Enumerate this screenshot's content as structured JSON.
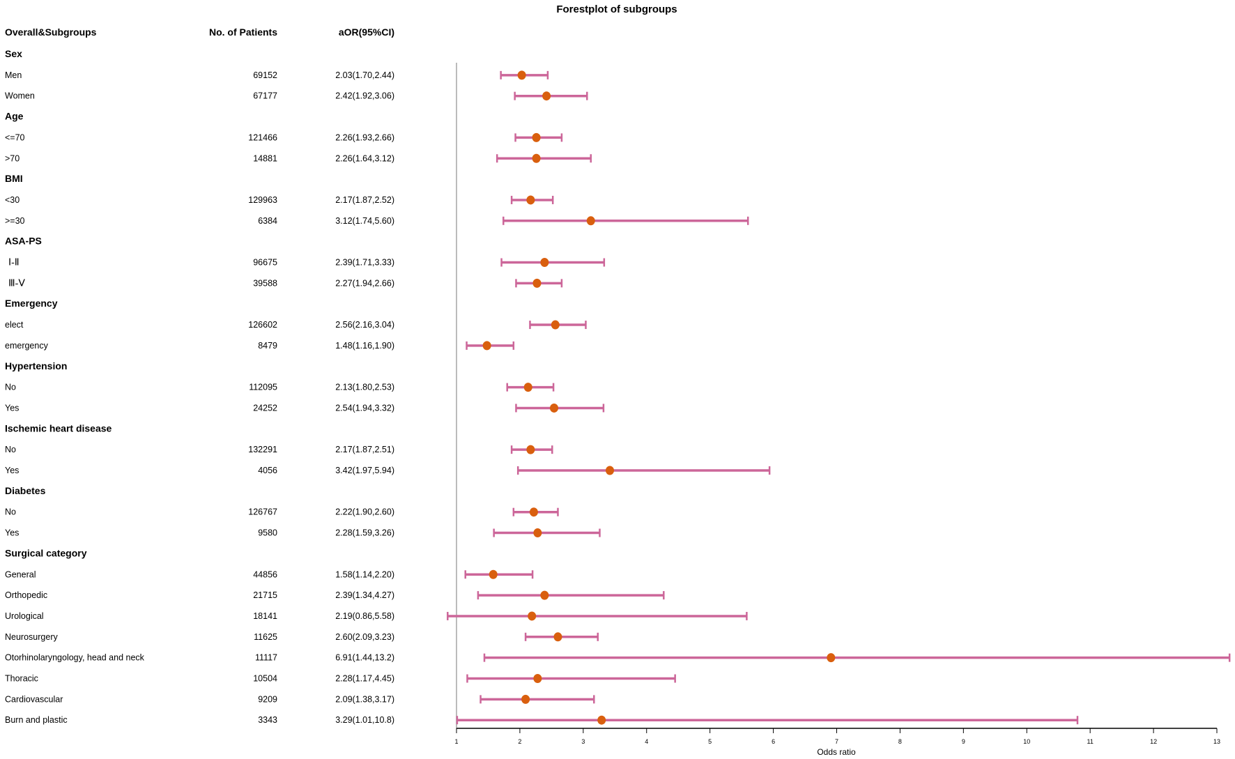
{
  "chart_data": {
    "type": "forest",
    "title": "Forestplot of subgroups",
    "columns": [
      "Overall&Subgroups",
      "No. of Patients",
      "aOR(95%CI)"
    ],
    "xlabel": "Odds ratio",
    "xlim": [
      1,
      13
    ],
    "xticks": [
      "1",
      "2",
      "3",
      "4",
      "5",
      "6",
      "7",
      "8",
      "9",
      "10",
      "11",
      "12",
      "13"
    ],
    "reference_line": 1,
    "colors": {
      "ci": "#cc6699",
      "point": "#d95f0e",
      "ref": "#bbbbbb",
      "axis": "#000000"
    },
    "rows": [
      {
        "kind": "group",
        "label": "Sex"
      },
      {
        "kind": "item",
        "label": "Men",
        "n": "69152",
        "ci_text": "2.03(1.70,2.44)",
        "or": 2.03,
        "lo": 1.7,
        "hi": 2.44
      },
      {
        "kind": "item",
        "label": "Women",
        "n": "67177",
        "ci_text": "2.42(1.92,3.06)",
        "or": 2.42,
        "lo": 1.92,
        "hi": 3.06
      },
      {
        "kind": "group",
        "label": "Age"
      },
      {
        "kind": "item",
        "label": "<=70",
        "n": "121466",
        "ci_text": "2.26(1.93,2.66)",
        "or": 2.26,
        "lo": 1.93,
        "hi": 2.66
      },
      {
        "kind": "item",
        "label": ">70",
        "n": "14881",
        "ci_text": "2.26(1.64,3.12)",
        "or": 2.26,
        "lo": 1.64,
        "hi": 3.12
      },
      {
        "kind": "group",
        "label": "BMI"
      },
      {
        "kind": "item",
        "label": "<30",
        "n": "129963",
        "ci_text": "2.17(1.87,2.52)",
        "or": 2.17,
        "lo": 1.87,
        "hi": 2.52
      },
      {
        "kind": "item",
        "label": ">=30",
        "n": "6384",
        "ci_text": "3.12(1.74,5.60)",
        "or": 3.12,
        "lo": 1.74,
        "hi": 5.6
      },
      {
        "kind": "group",
        "label": "ASA-PS"
      },
      {
        "kind": "item",
        "label": "Ⅰ-Ⅱ",
        "roman": true,
        "n": "96675",
        "ci_text": "2.39(1.71,3.33)",
        "or": 2.39,
        "lo": 1.71,
        "hi": 3.33
      },
      {
        "kind": "item",
        "label": "Ⅲ-Ⅴ",
        "roman": true,
        "n": "39588",
        "ci_text": "2.27(1.94,2.66)",
        "or": 2.27,
        "lo": 1.94,
        "hi": 2.66
      },
      {
        "kind": "group",
        "label": "Emergency"
      },
      {
        "kind": "item",
        "label": "elect",
        "n": "126602",
        "ci_text": "2.56(2.16,3.04)",
        "or": 2.56,
        "lo": 2.16,
        "hi": 3.04
      },
      {
        "kind": "item",
        "label": "emergency",
        "n": "8479",
        "ci_text": "1.48(1.16,1.90)",
        "or": 1.48,
        "lo": 1.16,
        "hi": 1.9
      },
      {
        "kind": "group",
        "label": "Hypertension"
      },
      {
        "kind": "item",
        "label": "No",
        "n": "112095",
        "ci_text": "2.13(1.80,2.53)",
        "or": 2.13,
        "lo": 1.8,
        "hi": 2.53
      },
      {
        "kind": "item",
        "label": "Yes",
        "n": "24252",
        "ci_text": "2.54(1.94,3.32)",
        "or": 2.54,
        "lo": 1.94,
        "hi": 3.32
      },
      {
        "kind": "group",
        "label": "Ischemic heart disease"
      },
      {
        "kind": "item",
        "label": "No",
        "n": "132291",
        "ci_text": "2.17(1.87,2.51)",
        "or": 2.17,
        "lo": 1.87,
        "hi": 2.51
      },
      {
        "kind": "item",
        "label": "Yes",
        "n": "4056",
        "ci_text": "3.42(1.97,5.94)",
        "or": 3.42,
        "lo": 1.97,
        "hi": 5.94
      },
      {
        "kind": "group",
        "label": "Diabetes"
      },
      {
        "kind": "item",
        "label": "No",
        "n": "126767",
        "ci_text": "2.22(1.90,2.60)",
        "or": 2.22,
        "lo": 1.9,
        "hi": 2.6
      },
      {
        "kind": "item",
        "label": "Yes",
        "n": "9580",
        "ci_text": "2.28(1.59,3.26)",
        "or": 2.28,
        "lo": 1.59,
        "hi": 3.26
      },
      {
        "kind": "group",
        "label": "Surgical category"
      },
      {
        "kind": "item",
        "label": "General",
        "n": "44856",
        "ci_text": "1.58(1.14,2.20)",
        "or": 1.58,
        "lo": 1.14,
        "hi": 2.2
      },
      {
        "kind": "item",
        "label": "Orthopedic",
        "n": "21715",
        "ci_text": "2.39(1.34,4.27)",
        "or": 2.39,
        "lo": 1.34,
        "hi": 4.27
      },
      {
        "kind": "item",
        "label": "Urological",
        "n": "18141",
        "ci_text": "2.19(0.86,5.58)",
        "or": 2.19,
        "lo": 0.86,
        "hi": 5.58
      },
      {
        "kind": "item",
        "label": "Neurosurgery",
        "n": "11625",
        "ci_text": "2.60(2.09,3.23)",
        "or": 2.6,
        "lo": 2.09,
        "hi": 3.23
      },
      {
        "kind": "item",
        "label": "Otorhinolaryngology, head and neck",
        "n": "11117",
        "ci_text": "6.91(1.44,13.2)",
        "or": 6.91,
        "lo": 1.44,
        "hi": 13.2
      },
      {
        "kind": "item",
        "label": "Thoracic",
        "n": "10504",
        "ci_text": "2.28(1.17,4.45)",
        "or": 2.28,
        "lo": 1.17,
        "hi": 4.45
      },
      {
        "kind": "item",
        "label": "Cardiovascular",
        "n": "9209",
        "ci_text": "2.09(1.38,3.17)",
        "or": 2.09,
        "lo": 1.38,
        "hi": 3.17
      },
      {
        "kind": "item",
        "label": "Burn and plastic",
        "n": "3343",
        "ci_text": "3.29(1.01,10.8)",
        "or": 3.29,
        "lo": 1.01,
        "hi": 10.8
      }
    ]
  }
}
